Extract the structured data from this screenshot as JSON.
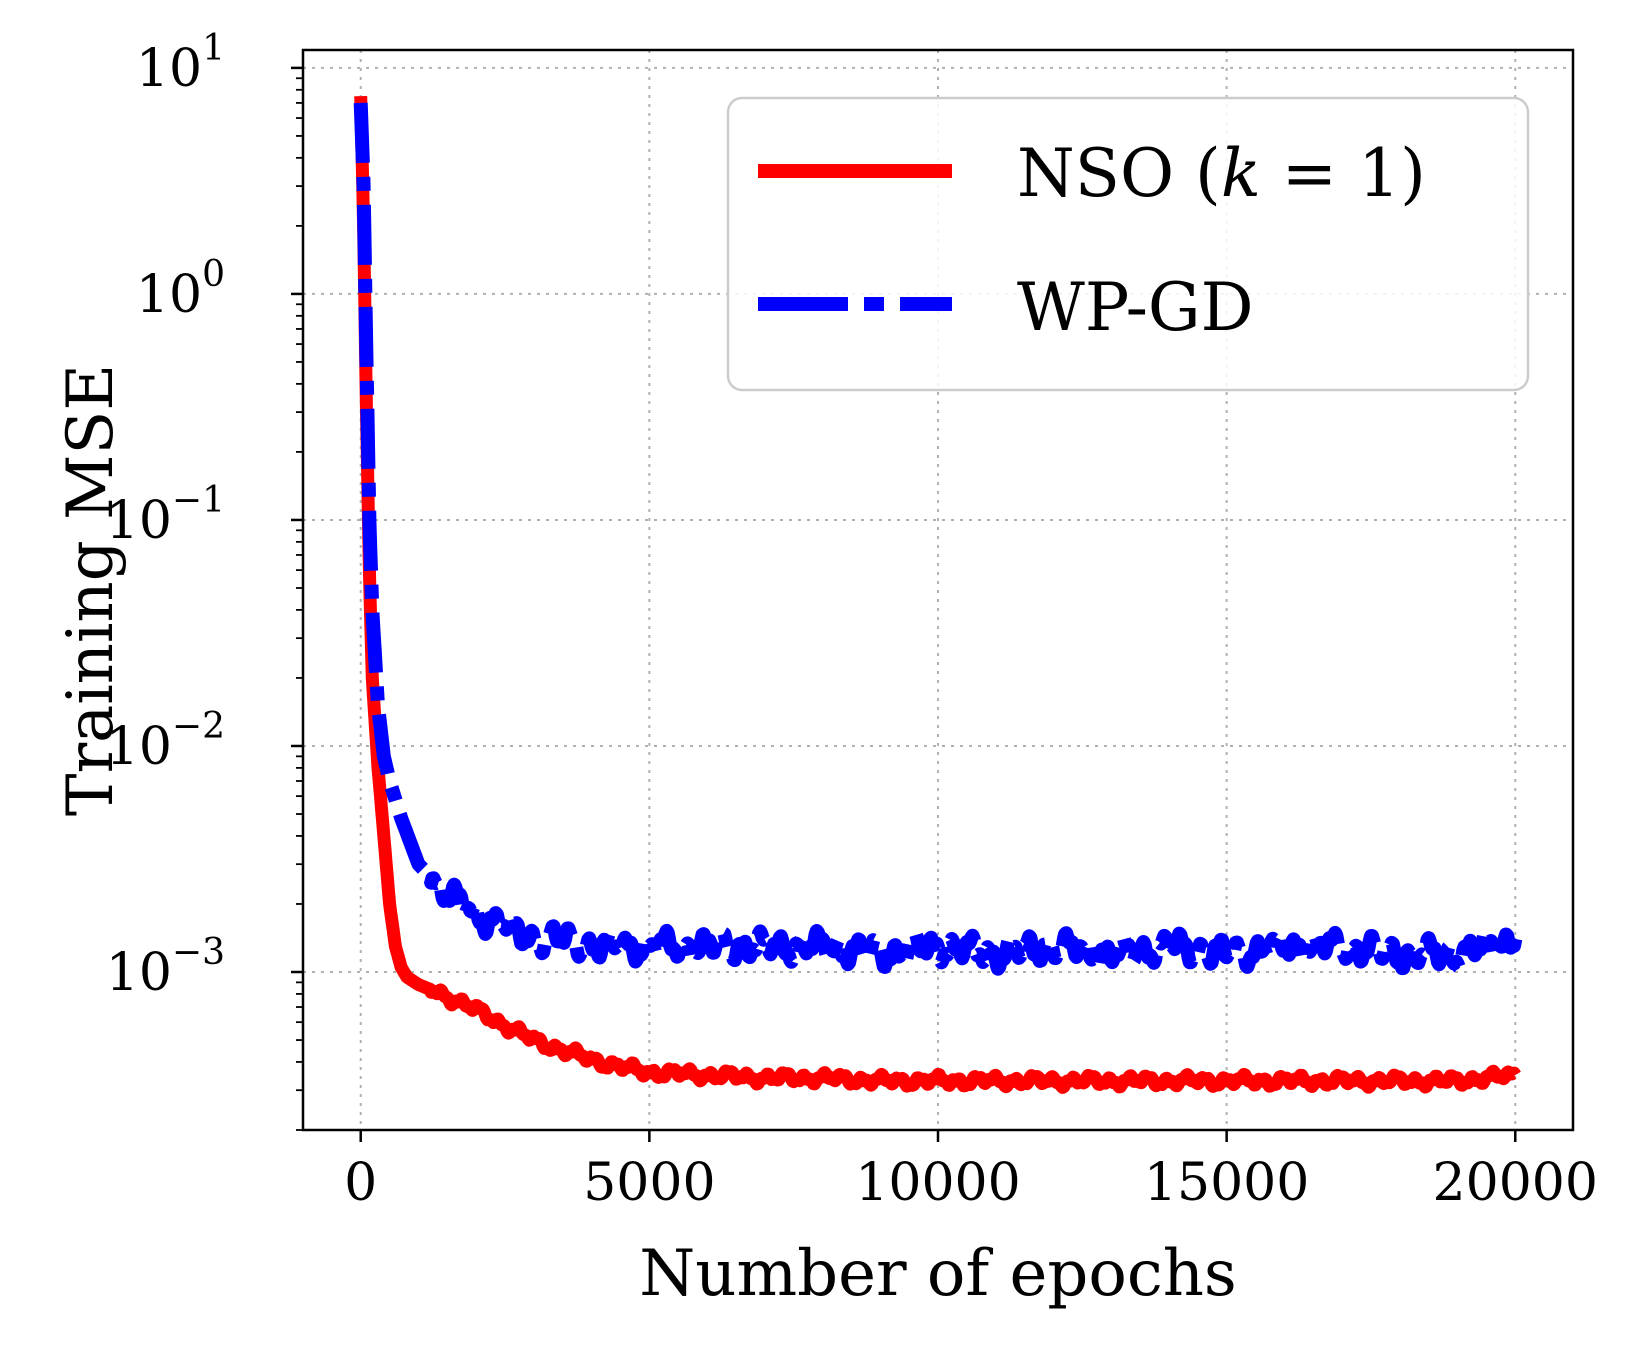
{
  "chart_data": {
    "type": "line",
    "xlabel": "Number of epochs",
    "ylabel": "Training MSE",
    "yscale": "log",
    "xlim": [
      -1000,
      21000
    ],
    "ylim": [
      0.0002,
      12
    ],
    "grid": true,
    "legend_position": "upper right",
    "x_ticks": [
      {
        "value": 0,
        "label": "0"
      },
      {
        "value": 5000,
        "label": "5000"
      },
      {
        "value": 10000,
        "label": "10000"
      },
      {
        "value": 15000,
        "label": "15000"
      },
      {
        "value": 20000,
        "label": "20000"
      }
    ],
    "y_ticks": [
      {
        "value": 0.001,
        "base": "10",
        "exp": "−3"
      },
      {
        "value": 0.01,
        "base": "10",
        "exp": "−2"
      },
      {
        "value": 0.1,
        "base": "10",
        "exp": "−1"
      },
      {
        "value": 1,
        "base": "10",
        "exp": "0"
      },
      {
        "value": 10,
        "base": "10",
        "exp": "1"
      }
    ],
    "series": [
      {
        "name_main": "NSO (",
        "name_var": "k",
        "name_rest": " = 1)",
        "color": "#ff0000",
        "style": "solid",
        "x": [
          0,
          50,
          100,
          150,
          200,
          300,
          400,
          500,
          600,
          700,
          800,
          1000,
          1500,
          2000,
          2500,
          3000,
          3500,
          4000,
          4500,
          5000,
          6000,
          7000,
          8000,
          9000,
          10000,
          11000,
          12000,
          13000,
          14000,
          15000,
          16000,
          17000,
          18000,
          19000,
          20000
        ],
        "y": [
          7.5,
          2.0,
          0.3,
          0.06,
          0.02,
          0.008,
          0.004,
          0.002,
          0.0013,
          0.00105,
          0.00095,
          0.00088,
          0.00078,
          0.00068,
          0.00058,
          0.0005,
          0.00045,
          0.00041,
          0.00038,
          0.00036,
          0.00035,
          0.00034,
          0.00034,
          0.00033,
          0.00033,
          0.00033,
          0.00033,
          0.00033,
          0.00033,
          0.00033,
          0.00033,
          0.00033,
          0.00033,
          0.00033,
          0.00035
        ]
      },
      {
        "name_main": "WP-GD",
        "color": "#0000ff",
        "style": "dashdot",
        "x": [
          0,
          50,
          100,
          150,
          200,
          300,
          400,
          500,
          700,
          1000,
          1500,
          2000,
          2500,
          3000,
          3500,
          4000,
          5000,
          6000,
          7000,
          8000,
          9000,
          10000,
          11000,
          12000,
          13000,
          14000,
          15000,
          16000,
          17000,
          18000,
          19000,
          20000
        ],
        "y": [
          7.0,
          3.0,
          0.5,
          0.1,
          0.04,
          0.015,
          0.009,
          0.007,
          0.0048,
          0.003,
          0.0022,
          0.0018,
          0.0016,
          0.0014,
          0.0014,
          0.0013,
          0.0013,
          0.0013,
          0.0013,
          0.0013,
          0.0012,
          0.0013,
          0.0012,
          0.0013,
          0.0012,
          0.0013,
          0.0012,
          0.0013,
          0.0013,
          0.0012,
          0.0012,
          0.0014
        ]
      }
    ]
  }
}
